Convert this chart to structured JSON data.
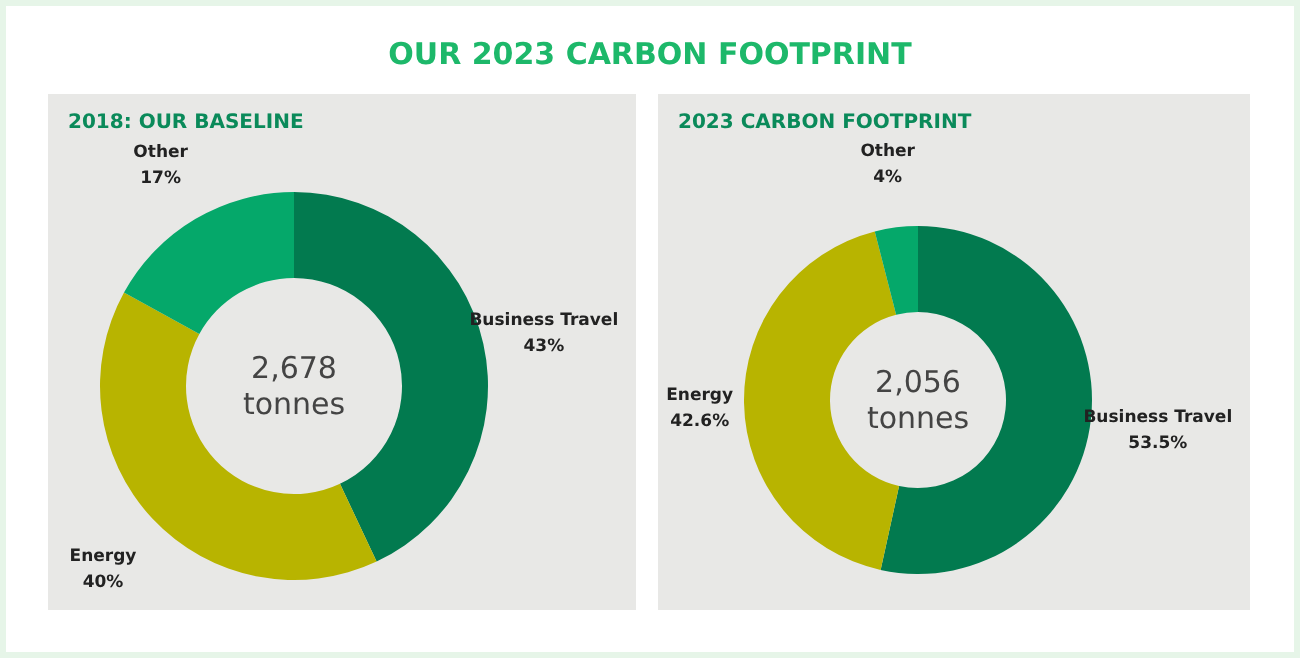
{
  "chart_data": [
    {
      "type": "donut",
      "title": "OUR 2023 CARBON FOOTPRINT",
      "subtitle": "2018: OUR BASELINE",
      "categories": [
        "Business Travel",
        "Energy",
        "Other"
      ],
      "values": [
        43,
        40,
        17
      ],
      "colors": [
        "#027a4f",
        "#b8b400",
        "#05a86a"
      ],
      "value_labels": [
        "43%",
        "40%",
        "17%"
      ],
      "annotations": [
        "2,678\ntonnes"
      ]
    },
    {
      "type": "donut",
      "subtitle": "2023 CARBON FOOTPRINT",
      "categories": [
        "Business Travel",
        "Energy",
        "Other"
      ],
      "values": [
        53.5,
        42.6,
        4
      ],
      "colors": [
        "#027a4f",
        "#b8b400",
        "#05a86a"
      ],
      "value_labels": [
        "53.5%",
        "42.6%",
        "4%"
      ],
      "annotations": [
        "2,056\ntonnes"
      ]
    }
  ]
}
